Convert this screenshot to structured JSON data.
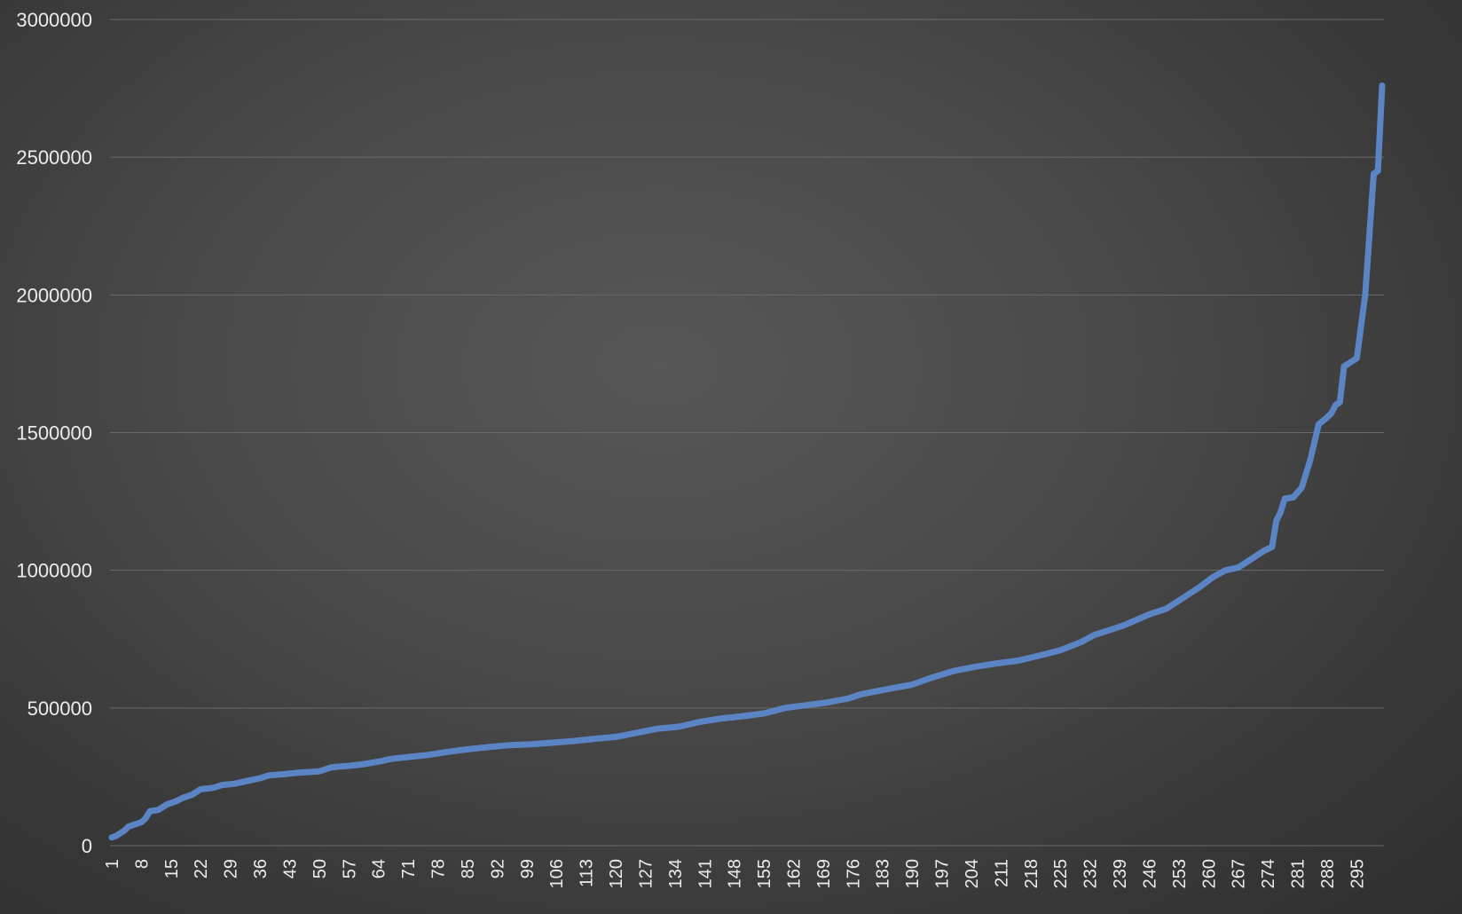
{
  "chart_data": {
    "type": "line",
    "title": "",
    "xlabel": "",
    "ylabel": "",
    "x_range": [
      1,
      301
    ],
    "x_tick_labels": [
      "1",
      "8",
      "15",
      "22",
      "29",
      "36",
      "43",
      "50",
      "57",
      "64",
      "71",
      "78",
      "85",
      "92",
      "99",
      "106",
      "113",
      "120",
      "127",
      "134",
      "141",
      "148",
      "155",
      "162",
      "169",
      "176",
      "183",
      "190",
      "197",
      "204",
      "211",
      "218",
      "225",
      "232",
      "239",
      "246",
      "253",
      "260",
      "267",
      "274",
      "281",
      "288",
      "295"
    ],
    "y_ticks": [
      0,
      500000,
      1000000,
      1500000,
      2000000,
      2500000,
      3000000
    ],
    "y_tick_labels": [
      "0",
      "500000",
      "1000000",
      "1500000",
      "2000000",
      "2500000",
      "3000000"
    ],
    "ylim": [
      0,
      3000000
    ],
    "grid": true,
    "line_color": "#5b84c4",
    "series": [
      {
        "points": [
          [
            1,
            30000
          ],
          [
            2,
            35000
          ],
          [
            3,
            45000
          ],
          [
            4,
            55000
          ],
          [
            5,
            70000
          ],
          [
            6,
            75000
          ],
          [
            7,
            80000
          ],
          [
            8,
            85000
          ],
          [
            9,
            100000
          ],
          [
            10,
            125000
          ],
          [
            12,
            130000
          ],
          [
            14,
            150000
          ],
          [
            16,
            160000
          ],
          [
            18,
            175000
          ],
          [
            20,
            185000
          ],
          [
            22,
            205000
          ],
          [
            25,
            210000
          ],
          [
            27,
            220000
          ],
          [
            30,
            225000
          ],
          [
            33,
            235000
          ],
          [
            36,
            245000
          ],
          [
            38,
            255000
          ],
          [
            42,
            260000
          ],
          [
            45,
            265000
          ],
          [
            50,
            270000
          ],
          [
            53,
            285000
          ],
          [
            57,
            290000
          ],
          [
            60,
            295000
          ],
          [
            64,
            305000
          ],
          [
            67,
            315000
          ],
          [
            71,
            322000
          ],
          [
            76,
            330000
          ],
          [
            80,
            340000
          ],
          [
            85,
            350000
          ],
          [
            90,
            358000
          ],
          [
            95,
            365000
          ],
          [
            100,
            368000
          ],
          [
            106,
            375000
          ],
          [
            110,
            380000
          ],
          [
            115,
            388000
          ],
          [
            120,
            395000
          ],
          [
            125,
            410000
          ],
          [
            130,
            425000
          ],
          [
            135,
            432000
          ],
          [
            140,
            450000
          ],
          [
            145,
            462000
          ],
          [
            150,
            470000
          ],
          [
            155,
            480000
          ],
          [
            160,
            500000
          ],
          [
            165,
            510000
          ],
          [
            170,
            520000
          ],
          [
            175,
            535000
          ],
          [
            178,
            550000
          ],
          [
            183,
            565000
          ],
          [
            190,
            585000
          ],
          [
            195,
            612000
          ],
          [
            200,
            635000
          ],
          [
            205,
            650000
          ],
          [
            210,
            662000
          ],
          [
            215,
            672000
          ],
          [
            220,
            690000
          ],
          [
            225,
            710000
          ],
          [
            230,
            740000
          ],
          [
            233,
            765000
          ],
          [
            237,
            785000
          ],
          [
            240,
            800000
          ],
          [
            243,
            820000
          ],
          [
            246,
            840000
          ],
          [
            250,
            860000
          ],
          [
            253,
            890000
          ],
          [
            256,
            920000
          ],
          [
            258,
            940000
          ],
          [
            261,
            975000
          ],
          [
            264,
            1000000
          ],
          [
            267,
            1010000
          ],
          [
            269,
            1030000
          ],
          [
            271,
            1050000
          ],
          [
            273,
            1070000
          ],
          [
            275,
            1085000
          ],
          [
            276,
            1180000
          ],
          [
            277,
            1210000
          ],
          [
            278,
            1260000
          ],
          [
            280,
            1265000
          ],
          [
            282,
            1300000
          ],
          [
            284,
            1400000
          ],
          [
            286,
            1530000
          ],
          [
            288,
            1555000
          ],
          [
            289,
            1570000
          ],
          [
            290,
            1600000
          ],
          [
            291,
            1610000
          ],
          [
            292,
            1740000
          ],
          [
            293,
            1750000
          ],
          [
            294,
            1760000
          ],
          [
            295,
            1770000
          ],
          [
            297,
            2000000
          ],
          [
            299,
            2440000
          ],
          [
            300,
            2450000
          ],
          [
            301,
            2760000
          ]
        ]
      }
    ]
  }
}
